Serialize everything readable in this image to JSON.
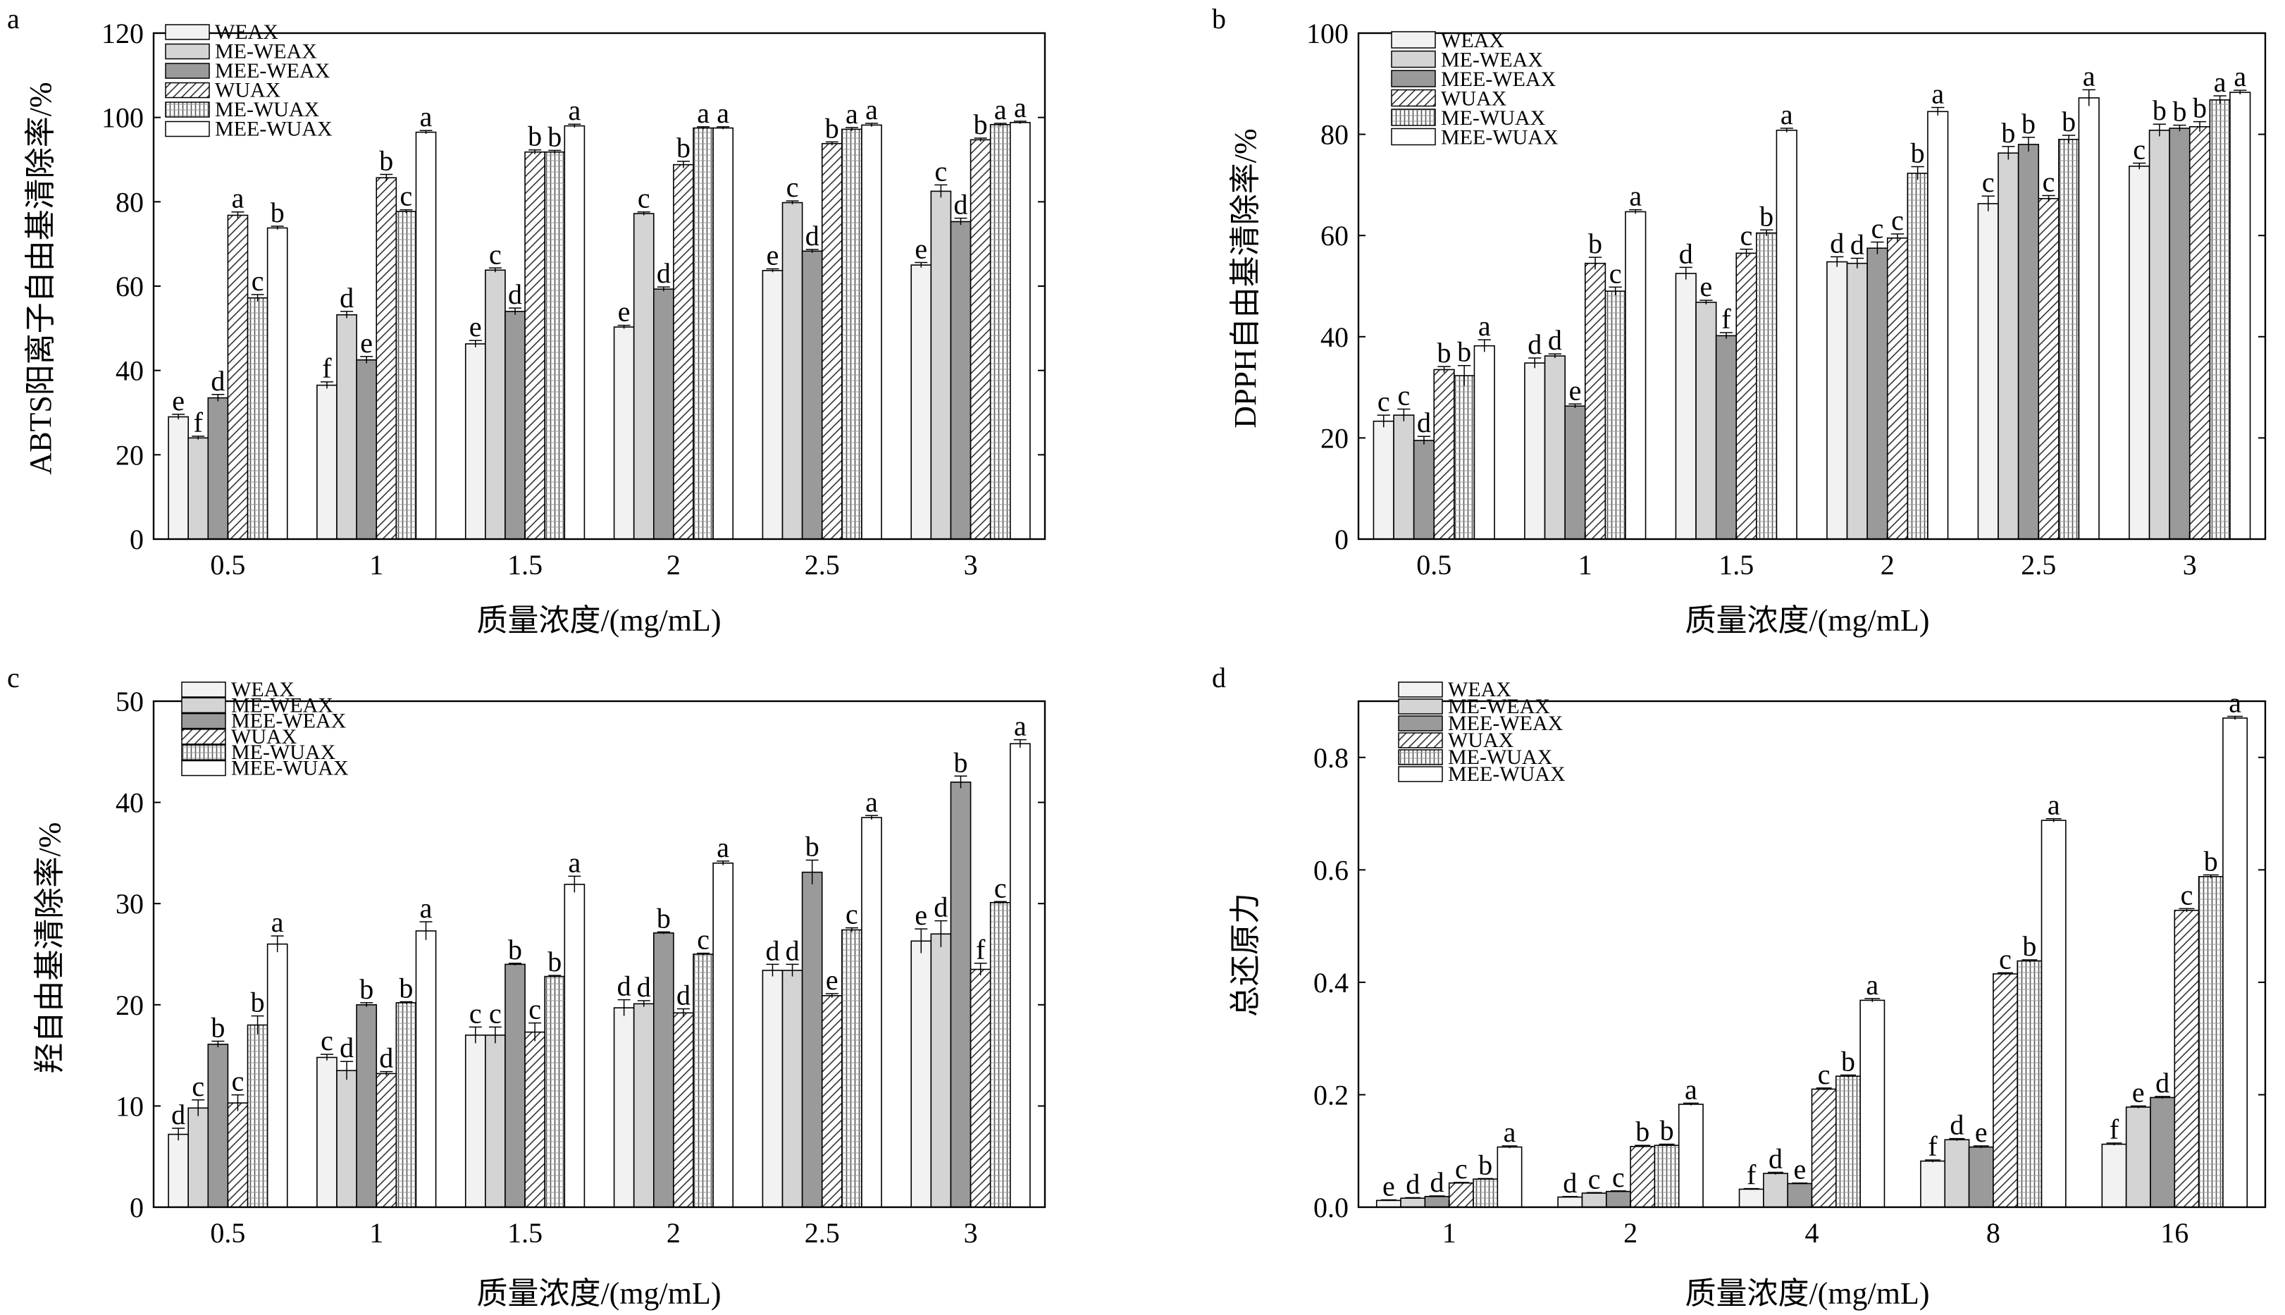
{
  "figure": {
    "series_names": [
      "WEAX",
      "ME-WEAX",
      "MEE-WEAX",
      "WUAX",
      "ME-WUAX",
      "MEE-WUAX"
    ],
    "series_fills": [
      "#f2f2f2",
      "#d4d4d4",
      "#9a9a9a",
      "hatch-diag",
      "hatch-vert",
      "#ffffff"
    ]
  },
  "chart_data": [
    {
      "panel": "a",
      "type": "bar",
      "ylabel": "ABTS阳离子自由基清除率/%",
      "xlabel": "质量浓度/(mg/mL)",
      "ylim": [
        0,
        120
      ],
      "yticks": [
        0,
        20,
        40,
        60,
        80,
        100,
        120
      ],
      "categories": [
        "0.5",
        "1",
        "1.5",
        "2",
        "2.5",
        "3"
      ],
      "series": [
        {
          "name": "WEAX",
          "values": [
            29,
            36.5,
            46.3,
            50.3,
            63.7,
            65
          ],
          "errors": [
            0.6,
            0.8,
            0.8,
            0.4,
            0.4,
            0.6
          ],
          "letters": [
            "e",
            "f",
            "e",
            "e",
            "e",
            "e"
          ]
        },
        {
          "name": "ME-WEAX",
          "values": [
            24,
            53.2,
            63.8,
            77.2,
            79.8,
            82.5
          ],
          "errors": [
            0.4,
            0.8,
            0.5,
            0.4,
            0.4,
            1.5
          ],
          "letters": [
            "f",
            "d",
            "c",
            "c",
            "c",
            "c"
          ]
        },
        {
          "name": "MEE-WEAX",
          "values": [
            33.5,
            42.5,
            54,
            59.3,
            68.3,
            75.3
          ],
          "errors": [
            0.8,
            0.8,
            0.8,
            0.5,
            0.4,
            0.8
          ],
          "letters": [
            "d",
            "e",
            "d",
            "d",
            "d",
            "d"
          ]
        },
        {
          "name": "WUAX",
          "values": [
            76.8,
            85.7,
            91.8,
            88.8,
            93.8,
            94.7
          ],
          "errors": [
            0.8,
            0.8,
            0.5,
            0.8,
            0.4,
            0.4
          ],
          "letters": [
            "a",
            "b",
            "b",
            "b",
            "b",
            "b"
          ]
        },
        {
          "name": "ME-WUAX",
          "values": [
            57.2,
            77.7,
            91.8,
            97.5,
            97.2,
            98.3
          ],
          "errors": [
            0.8,
            0.4,
            0.4,
            0.3,
            0.4,
            0.3
          ],
          "letters": [
            "c",
            "c",
            "b",
            "a",
            "a",
            "a"
          ]
        },
        {
          "name": "MEE-WUAX",
          "values": [
            73.8,
            96.5,
            98,
            97.5,
            98.2,
            98.8
          ],
          "errors": [
            0.4,
            0.4,
            0.4,
            0.3,
            0.4,
            0.3
          ],
          "letters": [
            "b",
            "a",
            "a",
            "a",
            "a",
            "a"
          ]
        }
      ]
    },
    {
      "panel": "b",
      "type": "bar",
      "ylabel": "DPPH自由基清除率/%",
      "xlabel": "质量浓度/(mg/mL)",
      "ylim": [
        0,
        100
      ],
      "yticks": [
        0,
        20,
        40,
        60,
        80,
        100
      ],
      "categories": [
        "0.5",
        "1",
        "1.5",
        "2",
        "2.5",
        "3"
      ],
      "series": [
        {
          "name": "WEAX",
          "values": [
            23.3,
            34.8,
            52.5,
            54.8,
            66.3,
            73.7
          ],
          "errors": [
            1.2,
            1.0,
            1.2,
            1.0,
            1.5,
            0.6
          ],
          "letters": [
            "c",
            "d",
            "d",
            "d",
            "c",
            "c"
          ]
        },
        {
          "name": "ME-WEAX",
          "values": [
            24.5,
            36.2,
            46.8,
            54.5,
            76.3,
            80.8
          ],
          "errors": [
            1.2,
            0.4,
            0.4,
            1.0,
            1.3,
            1.2
          ],
          "letters": [
            "c",
            "d",
            "e",
            "d",
            "b",
            "b"
          ]
        },
        {
          "name": "MEE-WEAX",
          "values": [
            19.5,
            26.3,
            40.2,
            57.5,
            78,
            81.2
          ],
          "errors": [
            0.8,
            0.4,
            0.6,
            1.2,
            1.4,
            0.6
          ],
          "letters": [
            "d",
            "e",
            "f",
            "c",
            "b",
            "b"
          ]
        },
        {
          "name": "WUAX",
          "values": [
            33.5,
            54.5,
            56.5,
            59.5,
            67.3,
            81.5
          ],
          "errors": [
            0.6,
            1.2,
            0.8,
            0.8,
            0.6,
            1.0
          ],
          "letters": [
            "b",
            "b",
            "c",
            "c",
            "c",
            "b"
          ]
        },
        {
          "name": "ME-WUAX",
          "values": [
            32.3,
            49,
            60.5,
            72.3,
            79,
            86.8
          ],
          "errors": [
            2.0,
            0.8,
            0.6,
            1.3,
            0.8,
            0.8
          ],
          "letters": [
            "b",
            "c",
            "b",
            "b",
            "b",
            "a"
          ]
        },
        {
          "name": "MEE-WUAX",
          "values": [
            38.2,
            64.7,
            80.8,
            84.5,
            87.2,
            88.3
          ],
          "errors": [
            1.2,
            0.4,
            0.4,
            0.8,
            1.6,
            0.4
          ],
          "letters": [
            "a",
            "a",
            "a",
            "a",
            "a",
            "a"
          ]
        }
      ]
    },
    {
      "panel": "c",
      "type": "bar",
      "ylabel": "羟自由基清除率/%",
      "xlabel": "质量浓度/(mg/mL)",
      "ylim": [
        0,
        50
      ],
      "yticks": [
        0,
        10,
        20,
        30,
        40,
        50
      ],
      "categories": [
        "0.5",
        "1",
        "1.5",
        "2",
        "2.5",
        "3"
      ],
      "series": [
        {
          "name": "WEAX",
          "values": [
            7.2,
            14.8,
            17,
            19.7,
            23.4,
            26.3
          ],
          "errors": [
            0.6,
            0.3,
            0.8,
            0.8,
            0.6,
            1.2
          ],
          "letters": [
            "d",
            "c",
            "c",
            "d",
            "d",
            "e"
          ]
        },
        {
          "name": "ME-WEAX",
          "values": [
            9.8,
            13.5,
            17,
            20.1,
            23.4,
            27
          ],
          "errors": [
            0.8,
            0.9,
            0.8,
            0.3,
            0.6,
            1.3
          ],
          "letters": [
            "c",
            "d",
            "c",
            "d",
            "d",
            "d"
          ]
        },
        {
          "name": "MEE-WEAX",
          "values": [
            16.1,
            20,
            24,
            27.1,
            33.1,
            42
          ],
          "errors": [
            0.3,
            0.2,
            0.1,
            0.1,
            1.2,
            0.6
          ],
          "letters": [
            "b",
            "b",
            "b",
            "b",
            "b",
            "b"
          ]
        },
        {
          "name": "WUAX",
          "values": [
            10.3,
            13.2,
            17.3,
            19.2,
            20.9,
            23.5
          ],
          "errors": [
            0.8,
            0.2,
            0.9,
            0.4,
            0.2,
            0.6
          ],
          "letters": [
            "c",
            "d",
            "c",
            "d",
            "e",
            "f"
          ]
        },
        {
          "name": "ME-WUAX",
          "values": [
            18,
            20.2,
            22.8,
            25,
            27.4,
            30.1
          ],
          "errors": [
            0.9,
            0.1,
            0.1,
            0.1,
            0.2,
            0.1
          ],
          "letters": [
            "b",
            "b",
            "b",
            "c",
            "c",
            "c"
          ]
        },
        {
          "name": "MEE-WUAX",
          "values": [
            26,
            27.3,
            31.9,
            34,
            38.5,
            45.8
          ],
          "errors": [
            0.8,
            0.9,
            0.8,
            0.2,
            0.2,
            0.4
          ],
          "letters": [
            "a",
            "a",
            "a",
            "a",
            "a",
            "a"
          ]
        }
      ]
    },
    {
      "panel": "d",
      "type": "bar",
      "ylabel": "总还原力",
      "xlabel": "质量浓度/(mg/mL)",
      "ylim": [
        0,
        0.9
      ],
      "yticks": [
        "0.0",
        "0.2",
        "0.4",
        "0.6",
        "0.8"
      ],
      "categories": [
        "1",
        "2",
        "4",
        "8",
        "16"
      ],
      "series": [
        {
          "name": "WEAX",
          "values": [
            0.012,
            0.018,
            0.032,
            0.082,
            0.112
          ],
          "errors": [
            0.001,
            0.001,
            0.001,
            0.002,
            0.002
          ],
          "letters": [
            "e",
            "d",
            "f",
            "f",
            "f"
          ]
        },
        {
          "name": "ME-WEAX",
          "values": [
            0.016,
            0.025,
            0.06,
            0.12,
            0.178
          ],
          "errors": [
            0.001,
            0.001,
            0.002,
            0.002,
            0.002
          ],
          "letters": [
            "d",
            "c",
            "d",
            "d",
            "e"
          ]
        },
        {
          "name": "MEE-WEAX",
          "values": [
            0.019,
            0.028,
            0.042,
            0.107,
            0.195
          ],
          "errors": [
            0.001,
            0.001,
            0.001,
            0.002,
            0.002
          ],
          "letters": [
            "d",
            "c",
            "e",
            "e",
            "d"
          ]
        },
        {
          "name": "WUAX",
          "values": [
            0.043,
            0.108,
            0.21,
            0.415,
            0.528
          ],
          "errors": [
            0.001,
            0.002,
            0.002,
            0.002,
            0.003
          ],
          "letters": [
            "c",
            "b",
            "c",
            "c",
            "c"
          ]
        },
        {
          "name": "ME-WUAX",
          "values": [
            0.05,
            0.11,
            0.233,
            0.438,
            0.588
          ],
          "errors": [
            0.001,
            0.002,
            0.002,
            0.002,
            0.003
          ],
          "letters": [
            "b",
            "b",
            "b",
            "b",
            "b"
          ]
        },
        {
          "name": "MEE-WUAX",
          "values": [
            0.107,
            0.183,
            0.368,
            0.688,
            0.87
          ],
          "errors": [
            0.002,
            0.002,
            0.003,
            0.003,
            0.003
          ],
          "letters": [
            "a",
            "a",
            "a",
            "a",
            "a"
          ]
        }
      ]
    }
  ]
}
